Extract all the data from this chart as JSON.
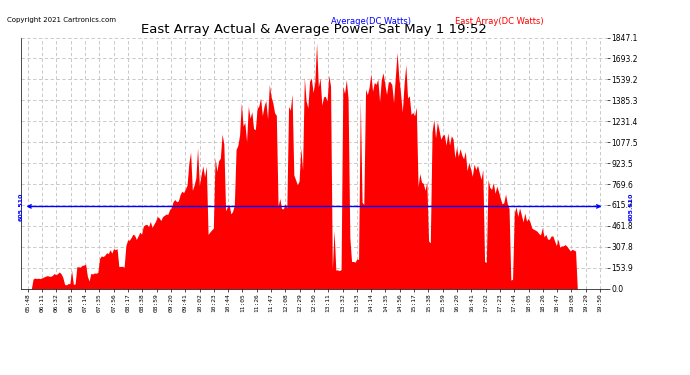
{
  "title": "East Array Actual & Average Power Sat May 1 19:52",
  "copyright": "Copyright 2021 Cartronics.com",
  "legend_average": "Average(DC Watts)",
  "legend_east": "East Array(DC Watts)",
  "average_value": 605.51,
  "y_ticks": [
    0.0,
    153.9,
    307.8,
    461.8,
    615.7,
    769.6,
    923.5,
    1077.5,
    1231.4,
    1385.3,
    1539.2,
    1693.2,
    1847.1
  ],
  "ymax": 1847.1,
  "ymin": 0.0,
  "background_color": "#ffffff",
  "area_color": "#ff0000",
  "avg_line_color": "#0000ff",
  "grid_color": "#c0c0c0",
  "title_color": "#000000",
  "copyright_color": "#000000",
  "avg_label_color": "#0000ff",
  "east_label_color": "#ff0000",
  "x_labels": [
    "05:48",
    "06:11",
    "06:32",
    "06:55",
    "07:14",
    "07:35",
    "07:56",
    "08:17",
    "08:38",
    "08:59",
    "09:20",
    "09:41",
    "10:02",
    "10:23",
    "10:44",
    "11:05",
    "11:26",
    "11:47",
    "12:08",
    "12:29",
    "12:50",
    "13:11",
    "13:32",
    "13:53",
    "14:14",
    "14:35",
    "14:56",
    "15:17",
    "15:38",
    "15:59",
    "16:20",
    "16:41",
    "17:02",
    "17:23",
    "17:44",
    "18:05",
    "18:26",
    "18:47",
    "19:08",
    "19:29",
    "19:50"
  ]
}
